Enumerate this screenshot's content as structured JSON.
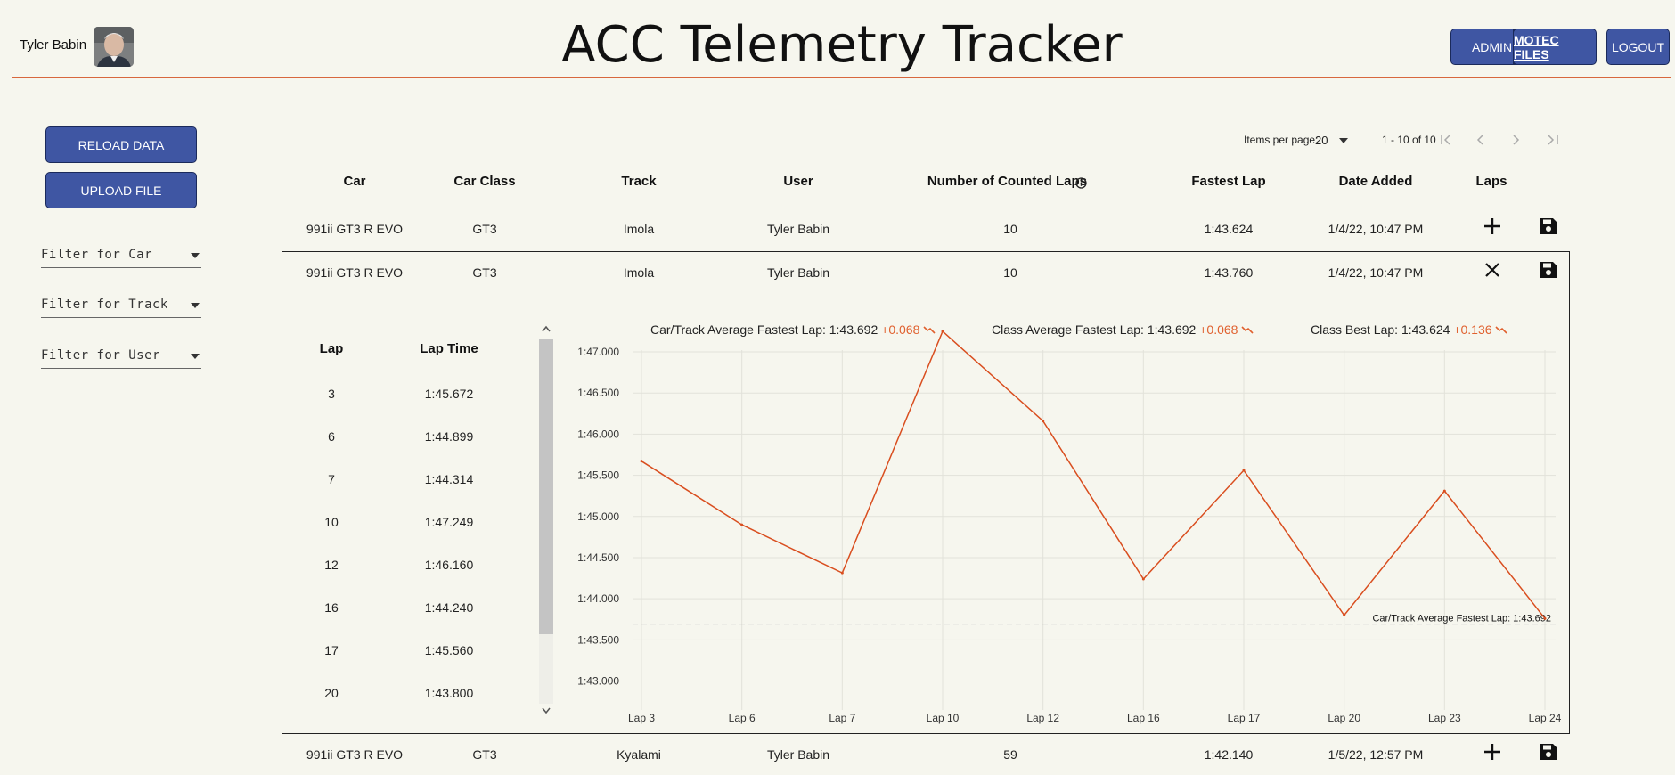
{
  "header": {
    "user_name": "Tyler Babin",
    "title": "ACC Telemetry Tracker",
    "buttons": {
      "admin": "ADMIN",
      "motec": "MOTEC FILES",
      "logout": "LOGOUT"
    }
  },
  "sidebar": {
    "reload": "RELOAD DATA",
    "upload": "UPLOAD FILE",
    "filters": [
      "Filter for Car",
      "Filter for Track",
      "Filter for User"
    ]
  },
  "pager": {
    "items_label": "Items per page:",
    "items_value": "20",
    "range": "1 - 10 of 10"
  },
  "table": {
    "headers": [
      "Car",
      "Car Class",
      "Track",
      "User",
      "Number of Counted Laps",
      "Fastest Lap",
      "Date Added",
      "Laps"
    ],
    "rows": [
      [
        "991ii GT3 R EVO",
        "GT3",
        "Imola",
        "Tyler Babin",
        "10",
        "1:43.624",
        "1/4/22, 10:47 PM"
      ],
      [
        "991ii GT3 R EVO",
        "GT3",
        "Imola",
        "Tyler Babin",
        "10",
        "1:43.760",
        "1/4/22, 10:47 PM"
      ],
      [
        "991ii GT3 R EVO",
        "GT3",
        "Kyalami",
        "Tyler Babin",
        "59",
        "1:42.140",
        "1/5/22, 12:57 PM"
      ]
    ]
  },
  "detail": {
    "lap_headers": [
      "Lap",
      "Lap Time"
    ],
    "laps": [
      [
        "3",
        "1:45.672"
      ],
      [
        "6",
        "1:44.899"
      ],
      [
        "7",
        "1:44.314"
      ],
      [
        "10",
        "1:47.249"
      ],
      [
        "12",
        "1:46.160"
      ],
      [
        "16",
        "1:44.240"
      ],
      [
        "17",
        "1:45.560"
      ],
      [
        "20",
        "1:43.800"
      ]
    ],
    "stats": [
      {
        "label": "Car/Track Average Fastest Lap: 1:43.692",
        "delta": "+0.068"
      },
      {
        "label": "Class Average Fastest Lap: 1:43.692",
        "delta": "+0.068"
      },
      {
        "label": "Class Best Lap: 1:43.624",
        "delta": "+0.136"
      }
    ]
  },
  "chart_data": {
    "type": "line",
    "categories": [
      "Lap 3",
      "Lap 6",
      "Lap 7",
      "Lap 10",
      "Lap 12",
      "Lap 16",
      "Lap 17",
      "Lap 20",
      "Lap 23",
      "Lap 24"
    ],
    "values": [
      105.672,
      104.899,
      104.314,
      107.249,
      106.16,
      104.24,
      105.56,
      103.8,
      105.31,
      103.76
    ],
    "ylim": [
      103.0,
      107.0
    ],
    "y_ticks": [
      "1:43.000",
      "1:43.500",
      "1:44.000",
      "1:44.500",
      "1:45.000",
      "1:45.500",
      "1:46.000",
      "1:46.500",
      "1:47.000"
    ],
    "reference_line": {
      "value": 103.692,
      "label": "Car/Track Average Fastest Lap: 1:43.692"
    },
    "line_color": "#d94e1f",
    "grid": true
  }
}
